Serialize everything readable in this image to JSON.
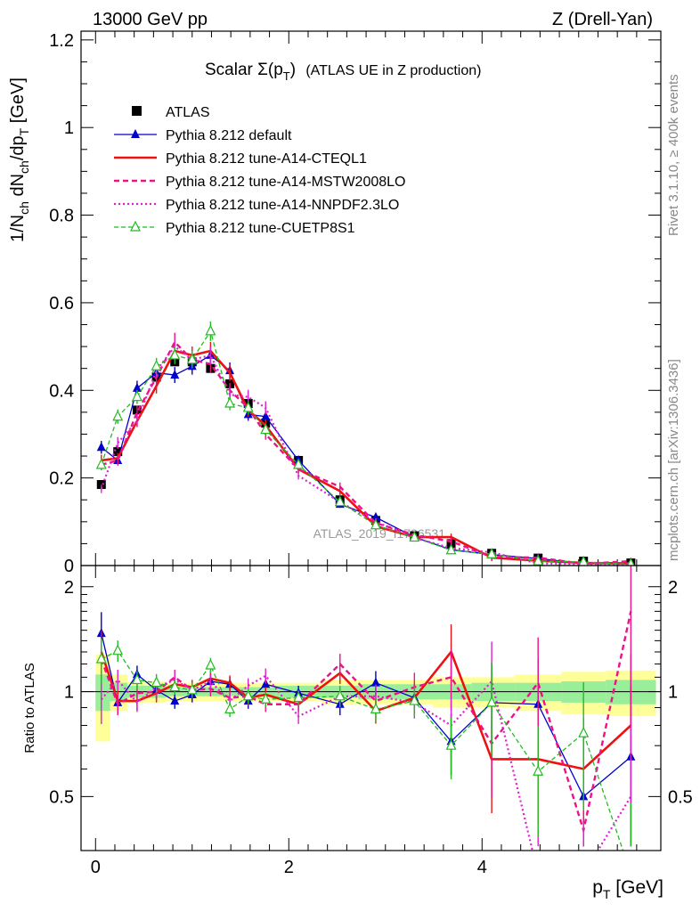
{
  "header": {
    "left": "13000 GeV pp",
    "right": "Z (Drell-Yan)"
  },
  "side_labels": {
    "rivet": "Rivet 3.1.10, ≥ 400k events",
    "mcplots": "mcplots.cern.ch [arXiv:1306.3436]"
  },
  "watermark": "ATLAS_2019_I1736531",
  "colors": {
    "atlas": "#000000",
    "default": "#0000cc",
    "cteql1": "#ee1111",
    "mstw": "#ee1188",
    "nnpdf": "#dd22cc",
    "cuetp8s1": "#22bb22",
    "band_yellow": "#ffff99",
    "band_green": "#99ee99"
  },
  "chart_data": [
    {
      "type": "line",
      "title_main": "Scalar Σ(p",
      "title_sub": "T",
      "title_end": ")",
      "title_rest": "(ATLAS UE in Z production)",
      "ylabel": "1/N_ch dN_ch/dp_T [GeV]",
      "ylim": [
        0,
        1.22
      ],
      "yticks": [
        "0",
        "0.2",
        "0.4",
        "0.6",
        "0.8",
        "1",
        "1.2"
      ],
      "ytick_values": [
        0,
        0.2,
        0.4,
        0.6,
        0.8,
        1.0,
        1.2
      ],
      "x": [
        0.06,
        0.23,
        0.43,
        0.63,
        0.82,
        1.0,
        1.19,
        1.39,
        1.58,
        1.76,
        2.1,
        2.53,
        2.9,
        3.3,
        3.68,
        4.1,
        4.58,
        5.05,
        5.54
      ],
      "series": [
        {
          "name": "ATLAS",
          "key": "atlas",
          "style": "marker-square",
          "values": [
            0.185,
            0.26,
            0.355,
            0.43,
            0.465,
            0.465,
            0.45,
            0.415,
            0.37,
            0.325,
            0.24,
            0.15,
            0.103,
            0.068,
            0.05,
            0.028,
            0.017,
            0.01,
            0.006
          ]
        },
        {
          "name": "Pythia 8.212 default",
          "key": "default",
          "style": "solid-triangle",
          "values": [
            0.27,
            0.24,
            0.405,
            0.44,
            0.435,
            0.455,
            0.48,
            0.445,
            0.345,
            0.34,
            0.24,
            0.14,
            0.11,
            0.065,
            0.036,
            0.025,
            0.016,
            0.005,
            0.004
          ]
        },
        {
          "name": "Pythia 8.212 tune-A14-CTEQL1",
          "key": "cteql1",
          "style": "solid",
          "values": [
            0.24,
            0.245,
            0.33,
            0.41,
            0.49,
            0.48,
            0.49,
            0.44,
            0.355,
            0.32,
            0.22,
            0.17,
            0.09,
            0.065,
            0.065,
            0.018,
            0.011,
            0.006,
            0.005
          ]
        },
        {
          "name": "Pythia 8.212 tune-A14-MSTW2008LO",
          "key": "mstw",
          "style": "dashed",
          "values": [
            0.23,
            0.24,
            0.35,
            0.43,
            0.51,
            0.47,
            0.46,
            0.4,
            0.36,
            0.3,
            0.22,
            0.18,
            0.097,
            0.07,
            0.055,
            0.02,
            0.018,
            0.004,
            0.01
          ]
        },
        {
          "name": "Pythia 8.212 tune-A14-NNPDF2.3LO",
          "key": "nnpdf",
          "style": "dotted",
          "values": [
            0.175,
            0.28,
            0.33,
            0.445,
            0.5,
            0.47,
            0.48,
            0.39,
            0.385,
            0.36,
            0.205,
            0.145,
            0.1,
            0.063,
            0.04,
            0.03,
            0.005,
            0.003,
            0.003
          ]
        },
        {
          "name": "Pythia 8.212 tune-CUETP8S1",
          "key": "cuetp8s1",
          "style": "dashed-open-triangle",
          "values": [
            0.23,
            0.34,
            0.385,
            0.455,
            0.48,
            0.47,
            0.535,
            0.37,
            0.36,
            0.31,
            0.23,
            0.145,
            0.092,
            0.064,
            0.035,
            0.026,
            0.01,
            0.008,
            0.003
          ]
        }
      ]
    },
    {
      "type": "line",
      "ylabel": "Ratio to ATLAS",
      "xlabel": "p_T [GeV]",
      "ylim": [
        0.35,
        2.3
      ],
      "yticks": [
        "0.5",
        "1",
        "2"
      ],
      "ytick_values": [
        0.5,
        1.0,
        2.0
      ],
      "xlim": [
        -0.15,
        5.85
      ],
      "xticks": [
        "0",
        "2",
        "4"
      ],
      "xtick_values": [
        0,
        2,
        4
      ],
      "x": [
        0.06,
        0.23,
        0.43,
        0.63,
        0.82,
        1.0,
        1.19,
        1.39,
        1.58,
        1.76,
        2.1,
        2.53,
        2.9,
        3.3,
        3.68,
        4.1,
        4.58,
        5.05,
        5.54
      ],
      "band_edges": [
        0.0,
        0.15,
        0.33,
        0.53,
        0.73,
        0.91,
        1.1,
        1.29,
        1.49,
        1.67,
        1.86,
        2.34,
        2.72,
        3.1,
        3.49,
        3.89,
        4.34,
        4.82,
        5.28,
        5.8
      ],
      "band_yellow": [
        0.28,
        0.12,
        0.07,
        0.07,
        0.06,
        0.06,
        0.06,
        0.06,
        0.06,
        0.06,
        0.06,
        0.08,
        0.08,
        0.08,
        0.1,
        0.1,
        0.12,
        0.14,
        0.15
      ],
      "band_green": [
        0.12,
        0.06,
        0.04,
        0.04,
        0.03,
        0.03,
        0.03,
        0.03,
        0.03,
        0.03,
        0.04,
        0.04,
        0.05,
        0.05,
        0.05,
        0.06,
        0.06,
        0.07,
        0.08
      ],
      "series": [
        {
          "name": "Pythia 8.212 default",
          "key": "default",
          "values": [
            1.47,
            0.93,
            1.12,
            1.01,
            0.94,
            0.98,
            1.07,
            1.05,
            0.94,
            1.05,
            0.99,
            0.92,
            1.06,
            0.96,
            0.72,
            0.93,
            0.92,
            0.5,
            0.65
          ]
        },
        {
          "name": "Pythia 8.212 tune-A14-CTEQL1",
          "key": "cteql1",
          "values": [
            1.3,
            0.94,
            0.94,
            0.99,
            1.05,
            1.03,
            1.09,
            1.06,
            0.96,
            0.98,
            0.92,
            1.13,
            0.88,
            0.96,
            1.3,
            0.64,
            0.64,
            0.6,
            0.8
          ]
        },
        {
          "name": "Pythia 8.212 tune-A14-MSTW2008LO",
          "key": "mstw",
          "values": [
            1.24,
            0.92,
            0.99,
            1.0,
            1.1,
            1.01,
            1.02,
            0.96,
            0.97,
            0.92,
            0.92,
            1.2,
            0.94,
            1.03,
            1.1,
            0.71,
            1.06,
            0.4,
            1.7
          ]
        },
        {
          "name": "Pythia 8.212 tune-A14-NNPDF2.3LO",
          "key": "nnpdf",
          "values": [
            0.95,
            1.08,
            0.93,
            1.03,
            1.08,
            1.01,
            1.07,
            0.94,
            1.04,
            1.11,
            0.85,
            0.97,
            0.97,
            0.93,
            0.8,
            1.07,
            0.3,
            0.3,
            0.5
          ]
        },
        {
          "name": "Pythia 8.212 tune-CUETP8S1",
          "key": "cuetp8s1",
          "values": [
            1.24,
            1.31,
            1.08,
            1.06,
            1.03,
            1.01,
            1.19,
            0.89,
            0.97,
            0.95,
            0.96,
            0.97,
            0.89,
            0.94,
            0.7,
            0.93,
            0.59,
            0.76,
            0.3
          ]
        }
      ]
    }
  ]
}
